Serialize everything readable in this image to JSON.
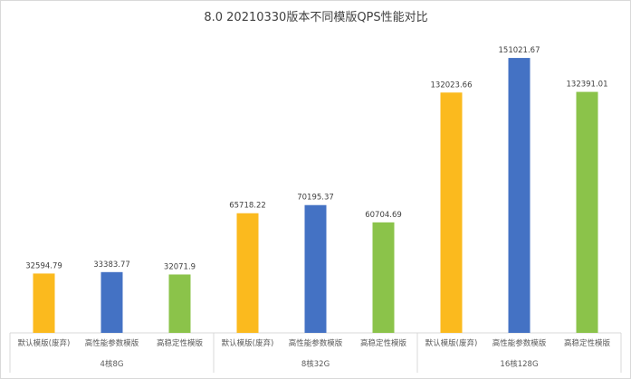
{
  "chart_data": {
    "type": "bar",
    "title": "8.0 20210330版本不同模版QPS性能对比",
    "groups": [
      "4核8G",
      "8核32G",
      "16核128G"
    ],
    "categories": [
      "默认模版(废弃)",
      "高性能参数模版",
      "高稳定性模版"
    ],
    "series": [
      {
        "group": "4核8G",
        "values": [
          32594.79,
          33383.77,
          32071.9
        ],
        "labels": [
          "32594.79",
          "33383.77",
          "32071.9"
        ]
      },
      {
        "group": "8核32G",
        "values": [
          65718.22,
          70195.37,
          60704.69
        ],
        "labels": [
          "65718.22",
          "70195.37",
          "60704.69"
        ]
      },
      {
        "group": "16核128G",
        "values": [
          132023.66,
          151021.67,
          132391.01
        ],
        "labels": [
          "132023.66",
          "151021.67",
          "132391.01"
        ]
      }
    ],
    "colors": [
      "#FBBA1E",
      "#4472C4",
      "#8BC34A"
    ],
    "ylim": [
      0,
      160000
    ],
    "grid": false,
    "legend": "none"
  }
}
